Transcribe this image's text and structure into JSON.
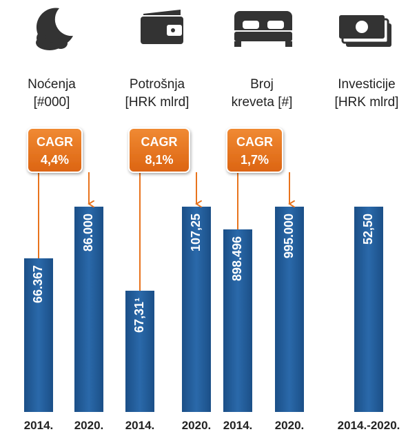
{
  "groups": [
    {
      "title": [
        "Noćenja",
        "[#000]"
      ],
      "cagr": {
        "label": "CAGR",
        "value": "4,4%"
      },
      "bars": [
        {
          "value": "66.367",
          "year": "2014."
        },
        {
          "value": "86.000",
          "year": "2020."
        }
      ]
    },
    {
      "title": [
        "Potrošnja",
        "[HRK mlrd]"
      ],
      "cagr": {
        "label": "CAGR",
        "value": "8,1%"
      },
      "bars": [
        {
          "value": "67,31¹",
          "year": "2014."
        },
        {
          "value": "107,25",
          "year": "2020."
        }
      ]
    },
    {
      "title": [
        "Broj",
        "kreveta [#]"
      ],
      "cagr": {
        "label": "CAGR",
        "value": "1,7%"
      },
      "bars": [
        {
          "value": "898.496",
          "year": "2014."
        },
        {
          "value": "995.000",
          "year": "2020."
        }
      ]
    },
    {
      "title": [
        "Investicije",
        "[HRK mlrd]"
      ],
      "bars": [
        {
          "value": "52,50",
          "year": "2014.-2020."
        }
      ]
    }
  ]
}
